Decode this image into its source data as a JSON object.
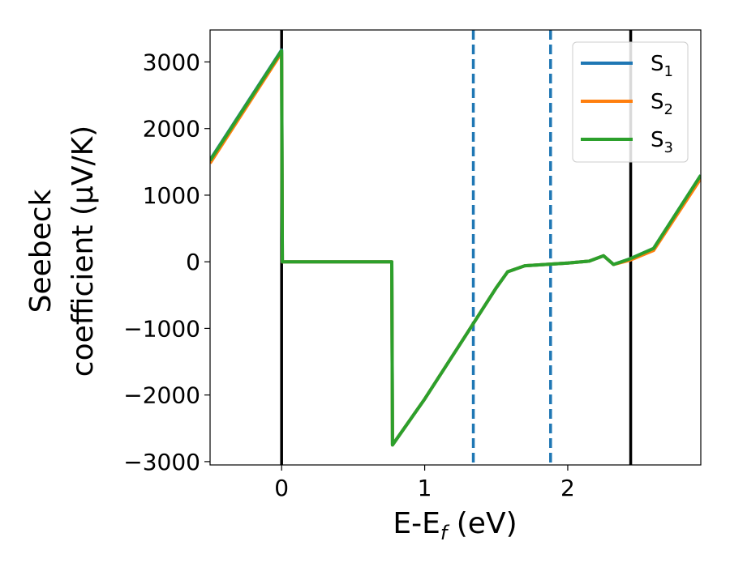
{
  "chart_data": {
    "type": "line",
    "xlabel_main": "E-E",
    "xlabel_sub": "f",
    "xlabel_unit": " (eV)",
    "ylabel_line1": "Seebeck",
    "ylabel_line2": "coefficient  (μV/K)",
    "xlim": [
      -0.5,
      2.93
    ],
    "ylim": [
      -3050,
      3480
    ],
    "x_ticks": [
      0,
      1,
      2
    ],
    "x_tick_labels": [
      "0",
      "1",
      "2"
    ],
    "y_ticks": [
      -3000,
      -2000,
      -1000,
      0,
      1000,
      2000,
      3000
    ],
    "y_tick_labels": [
      "−3000",
      "−2000",
      "−1000",
      "0",
      "1000",
      "2000",
      "3000"
    ],
    "grid": false,
    "legend_position": "top-right",
    "series": [
      {
        "name": "S",
        "sub": "1",
        "color": "#1f77b4",
        "x": [
          -0.5,
          0.0,
          0.005,
          0.77,
          0.775,
          1.0,
          1.3,
          1.5,
          1.58,
          1.7,
          2.0,
          2.15,
          2.25,
          2.32,
          2.43,
          2.6,
          2.93
        ],
        "y": [
          1530,
          3180,
          0,
          0,
          -2750,
          -2060,
          -1060,
          -390,
          -150,
          -60,
          -20,
          10,
          90,
          -40,
          40,
          200,
          1300
        ]
      },
      {
        "name": "S",
        "sub": "2",
        "color": "#ff7f0e",
        "x": [
          -0.5,
          0.0,
          0.005,
          0.77,
          0.775,
          1.0,
          1.3,
          1.5,
          1.58,
          1.7,
          2.0,
          2.15,
          2.25,
          2.32,
          2.43,
          2.6,
          2.93
        ],
        "y": [
          1480,
          3140,
          0,
          0,
          -2750,
          -2060,
          -1060,
          -390,
          -150,
          -60,
          -20,
          10,
          90,
          -40,
          20,
          170,
          1250
        ]
      },
      {
        "name": "S",
        "sub": "3",
        "color": "#2ca02c",
        "x": [
          -0.5,
          0.0,
          0.005,
          0.77,
          0.775,
          1.0,
          1.3,
          1.5,
          1.58,
          1.7,
          2.0,
          2.15,
          2.25,
          2.32,
          2.43,
          2.6,
          2.93
        ],
        "y": [
          1520,
          3170,
          0,
          0,
          -2750,
          -2060,
          -1060,
          -390,
          -150,
          -60,
          -20,
          10,
          90,
          -40,
          40,
          200,
          1300
        ]
      }
    ],
    "vlines": [
      {
        "x": 0.0,
        "style": "solid",
        "color": "#000000"
      },
      {
        "x": 2.44,
        "style": "solid",
        "color": "#000000"
      },
      {
        "x": 1.34,
        "style": "dashed",
        "color": "#1f77b4"
      },
      {
        "x": 1.88,
        "style": "dashed",
        "color": "#1f77b4"
      }
    ]
  }
}
